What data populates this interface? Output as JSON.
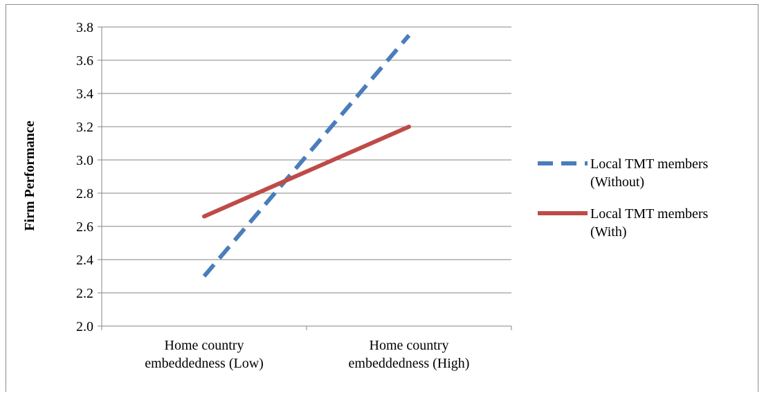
{
  "chart_data": {
    "type": "line",
    "categories": [
      [
        "Home country",
        "embeddedness (Low)"
      ],
      [
        "Home country",
        "embeddedness (High)"
      ]
    ],
    "ylabel": "Firm Performance",
    "xlabel": "",
    "ylim": [
      2.0,
      3.8
    ],
    "yticks": [
      "2.0",
      "2.2",
      "2.4",
      "2.6",
      "2.8",
      "3.0",
      "3.2",
      "3.4",
      "3.6",
      "3.8"
    ],
    "grid": true,
    "legend_position": "right",
    "series": [
      {
        "name": [
          "Local TMT members",
          "(Without)"
        ],
        "values": [
          2.3,
          3.75
        ],
        "color": "#4a7ebb",
        "style": "dashed"
      },
      {
        "name": [
          "Local TMT members",
          "(With)"
        ],
        "values": [
          2.66,
          3.2
        ],
        "color": "#be4b48",
        "style": "solid"
      }
    ]
  }
}
